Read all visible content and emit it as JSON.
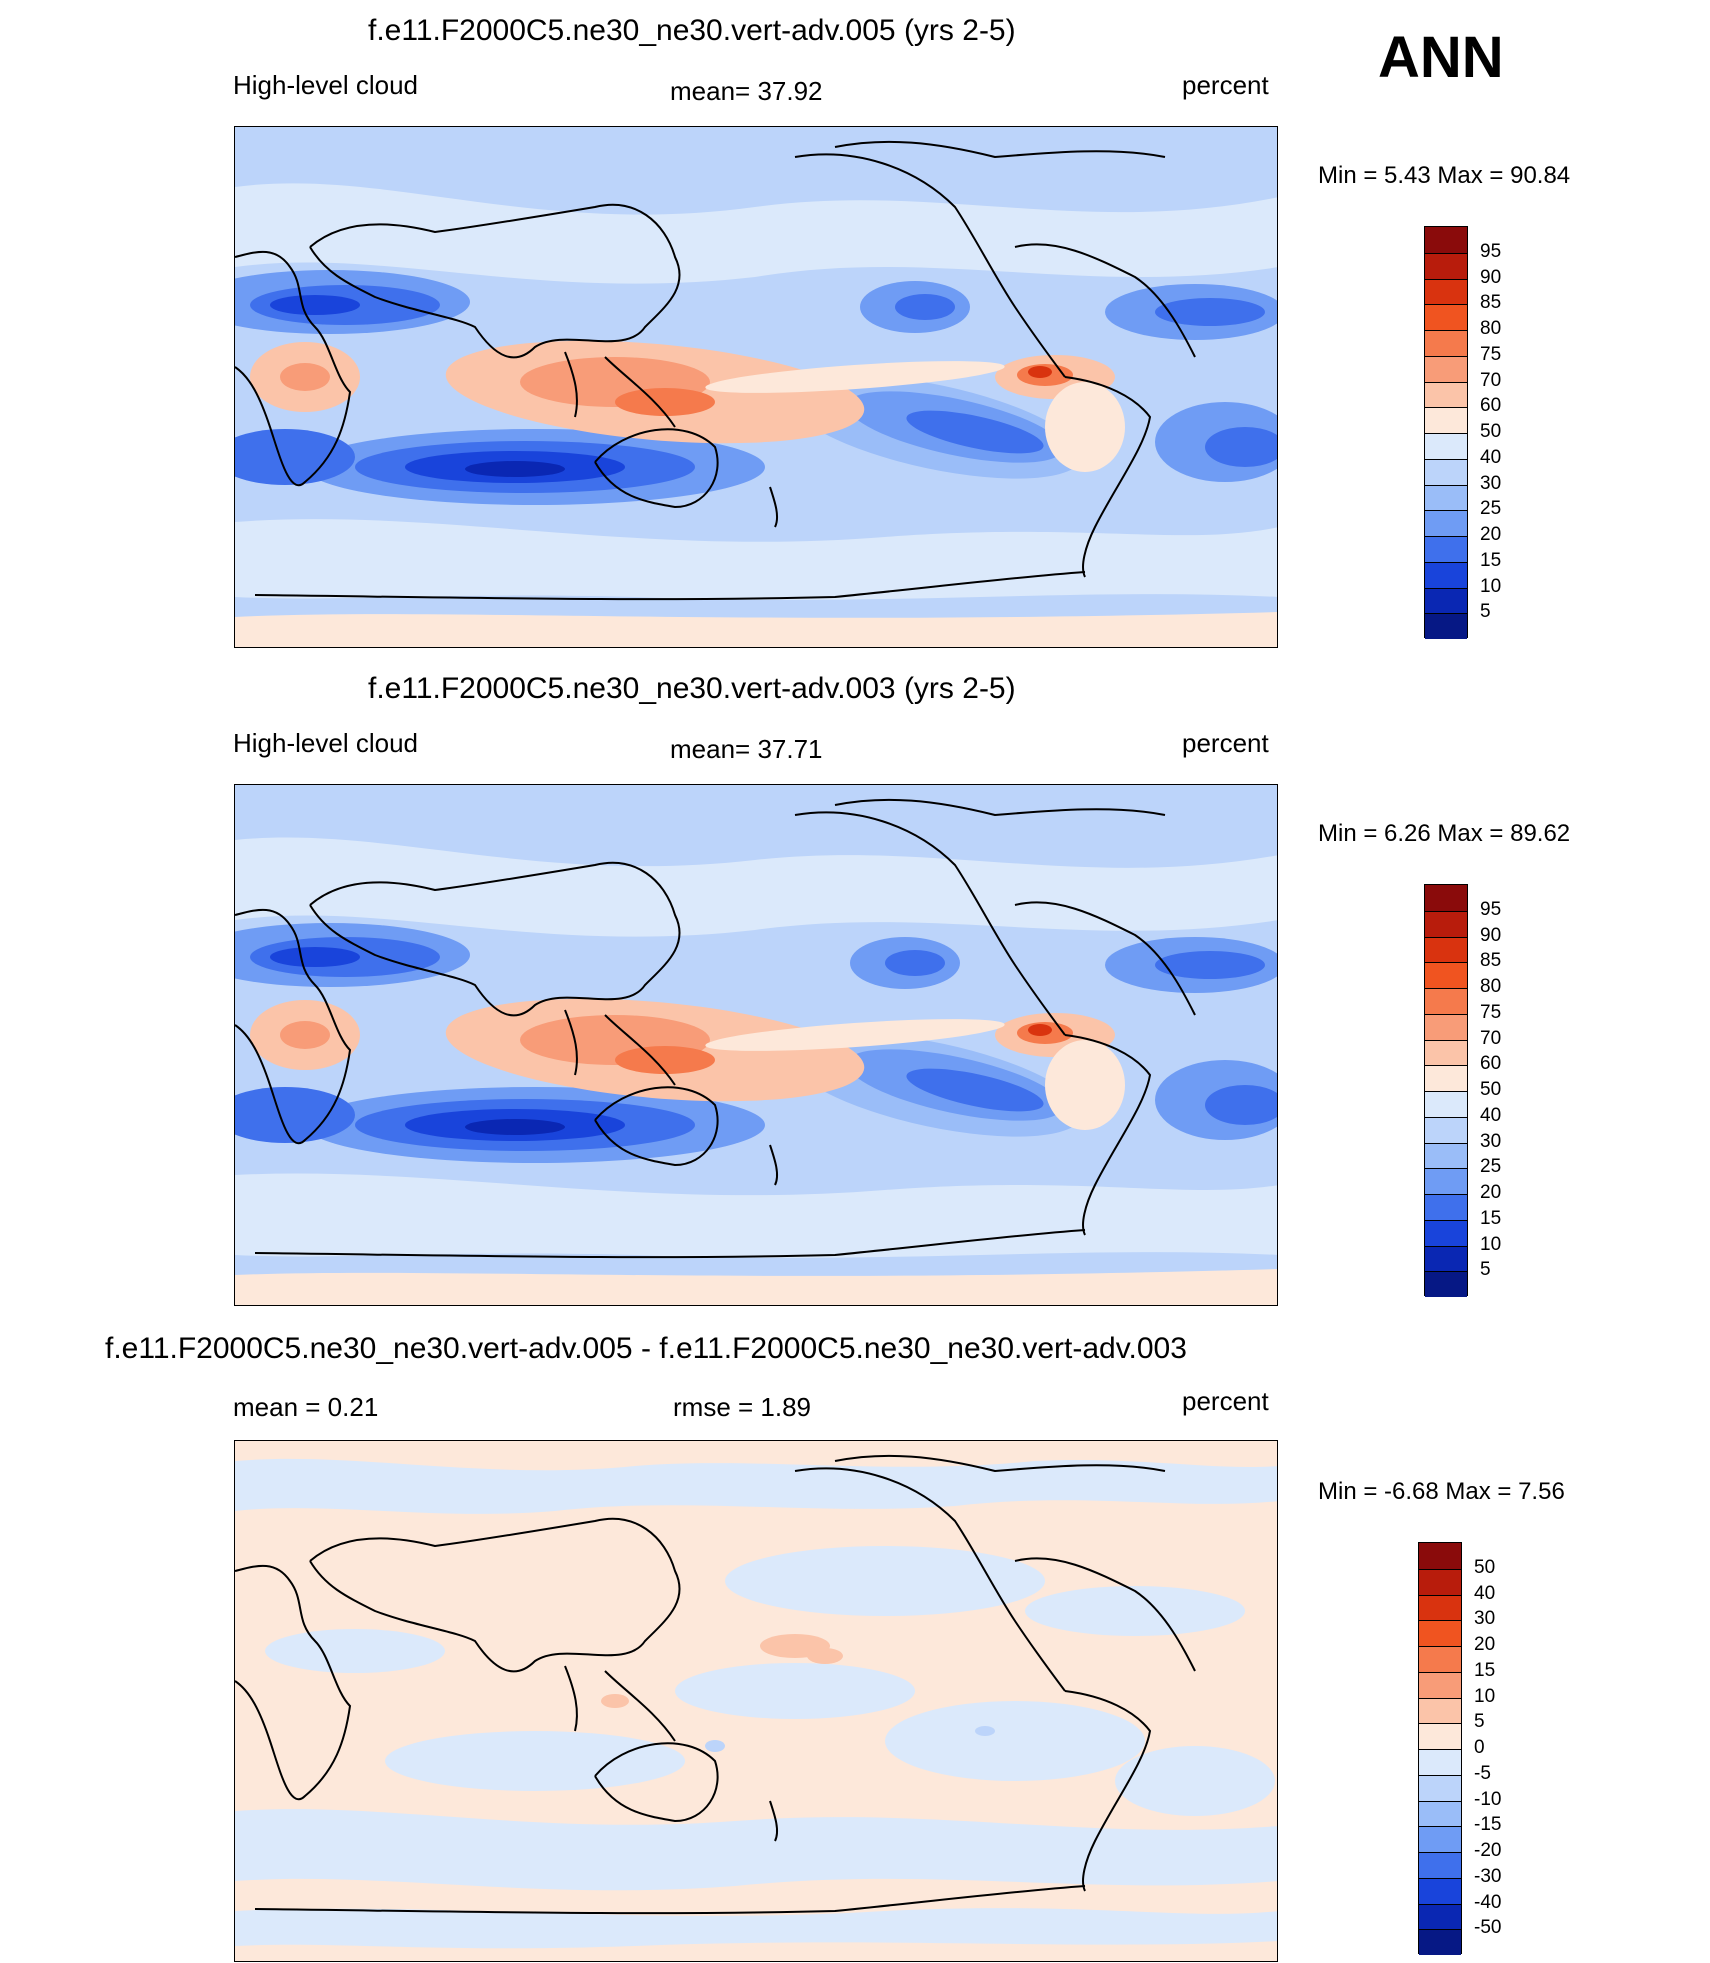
{
  "season": "ANN",
  "coast_color": "#000000",
  "panels": [
    {
      "title": "f.e11.F2000C5.ne30_ne30.vert-adv.005 (yrs 2-5)",
      "left_label": "High-level cloud",
      "center_label": "mean=  37.92",
      "units": "percent",
      "minmax": "Min =    5.43 Max =  90.84",
      "kind": "field",
      "mean_value": 37.92,
      "min_value": 5.43,
      "max_value": 90.84
    },
    {
      "title": "f.e11.F2000C5.ne30_ne30.vert-adv.003 (yrs 2-5)",
      "left_label": "High-level cloud",
      "center_label": "mean=  37.71",
      "units": "percent",
      "minmax": "Min =    6.26 Max =  89.62",
      "kind": "field",
      "mean_value": 37.71,
      "min_value": 6.26,
      "max_value": 89.62
    },
    {
      "title": "f.e11.F2000C5.ne30_ne30.vert-adv.005 - f.e11.F2000C5.ne30_ne30.vert-adv.003",
      "left_label": "mean =    0.21",
      "center_label": "rmse =    1.89",
      "units": "percent",
      "minmax": "Min =  -6.68 Max =    7.56",
      "kind": "diff",
      "mean_value": 0.21,
      "rmse_value": 1.89,
      "min_value": -6.68,
      "max_value": 7.56
    }
  ],
  "colorbars": {
    "field": {
      "ticks": [
        "95",
        "90",
        "85",
        "80",
        "75",
        "70",
        "60",
        "50",
        "40",
        "30",
        "25",
        "20",
        "15",
        "10",
        "5"
      ],
      "colors": [
        "#8a0b0b",
        "#b81c0c",
        "#d9330f",
        "#f05420",
        "#f57a4c",
        "#f89c78",
        "#fbc4a9",
        "#fde8da",
        "#dbe9fb",
        "#bcd4fa",
        "#9abdf8",
        "#6f9cf4",
        "#3f70ec",
        "#1944db",
        "#0a27b3",
        "#061885"
      ]
    },
    "diff": {
      "ticks": [
        "50",
        "40",
        "30",
        "20",
        "15",
        "10",
        "5",
        "0",
        "-5",
        "-10",
        "-15",
        "-20",
        "-30",
        "-40",
        "-50"
      ],
      "colors": [
        "#8a0b0b",
        "#b81c0c",
        "#d9330f",
        "#f05420",
        "#f57a4c",
        "#f89c78",
        "#fbc4a9",
        "#fde8da",
        "#dbe9fb",
        "#bcd4fa",
        "#9abdf8",
        "#6f9cf4",
        "#3f70ec",
        "#1944db",
        "#0a27b3",
        "#061885"
      ]
    }
  }
}
